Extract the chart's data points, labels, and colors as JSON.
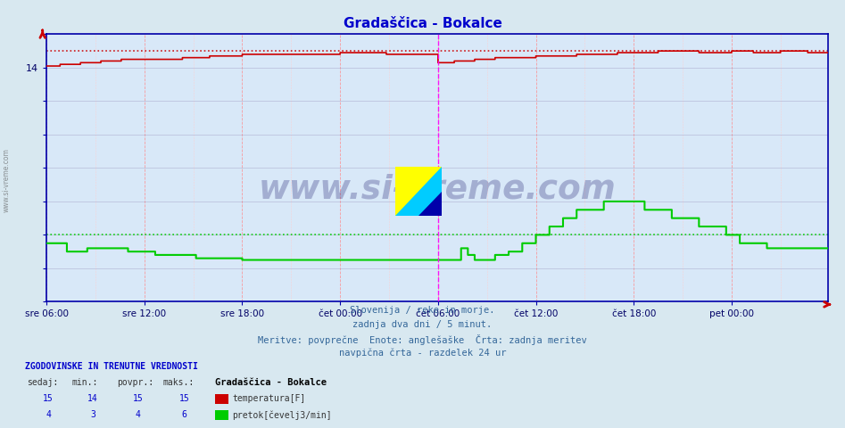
{
  "title": "Gradaščica - Bokalce",
  "title_color": "#0000cc",
  "bg_color": "#d8e8f0",
  "plot_bg_color": "#d8e8f8",
  "x_labels": [
    "sre 06:00",
    "sre 12:00",
    "sre 18:00",
    "čet 00:00",
    "čet 06:00",
    "čet 12:00",
    "čet 18:00",
    "pet 00:00"
  ],
  "x_ticks_pos": [
    0,
    72,
    144,
    216,
    288,
    360,
    432,
    504
  ],
  "total_points": 576,
  "ylim": [
    0,
    16.0
  ],
  "yticks": [
    0,
    2,
    4,
    6,
    8,
    10,
    12,
    14,
    16
  ],
  "ytick_labels": [
    "",
    "",
    "",
    "",
    "",
    "",
    "",
    "14",
    ""
  ],
  "grid_color_v_major": "#ff8888",
  "grid_color_v_minor": "#ffcccc",
  "grid_color_h": "#aaaacc",
  "temp_color": "#cc0000",
  "flow_color": "#00cc00",
  "temp_max_line": 15.0,
  "flow_avg_line": 4.0,
  "vertical_line_x": 288,
  "vertical_line_color": "#ff00ff",
  "watermark_text": "www.si-vreme.com",
  "footer_lines": [
    "Slovenija / reke in morje.",
    "zadnja dva dni / 5 minut.",
    "Meritve: povprečne  Enote: anglešaške  Črta: zadnja meritev",
    "navpična črta - razdelek 24 ur"
  ],
  "stat_header": "ZGODOVINSKE IN TRENUTNE VREDNOSTI",
  "stat_cols": [
    "sedaj:",
    "min.:",
    "povpr.:",
    "maks.:"
  ],
  "stat_temp": [
    15,
    14,
    15,
    15
  ],
  "stat_flow": [
    4,
    3,
    4,
    6
  ],
  "legend_title": "Gradaščica - Bokalce",
  "legend_temp": "temperatura[F]",
  "legend_flow": "pretok[čevelj3/min]",
  "left_label": "www.si-vreme.com",
  "spine_color": "#0000aa",
  "arrow_color": "#cc0000",
  "tick_label_color": "#000066",
  "footer_color": "#336699"
}
